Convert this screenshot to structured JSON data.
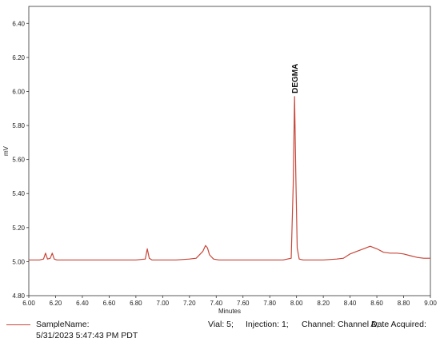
{
  "chart_data": {
    "type": "line",
    "xlabel": "Minutes",
    "ylabel": "mV",
    "xlim": [
      6.0,
      9.0
    ],
    "ylim": [
      4.8,
      6.5
    ],
    "x_ticks": [
      "6.00",
      "6.20",
      "6.40",
      "6.60",
      "6.80",
      "7.00",
      "7.20",
      "7.40",
      "7.60",
      "7.80",
      "8.00",
      "8.20",
      "8.40",
      "8.60",
      "8.80",
      "9.00"
    ],
    "y_ticks": [
      "4.80",
      "5.00",
      "5.20",
      "5.40",
      "5.60",
      "5.80",
      "6.00",
      "6.20",
      "6.40"
    ],
    "annotations": [
      {
        "text": "DEGMA",
        "x": 7.99,
        "y": 5.97
      }
    ],
    "series": [
      {
        "color": "#c8473a",
        "x": [
          6.0,
          6.08,
          6.11,
          6.125,
          6.14,
          6.16,
          6.175,
          6.19,
          6.21,
          6.3,
          6.4,
          6.5,
          6.6,
          6.7,
          6.8,
          6.87,
          6.885,
          6.9,
          6.92,
          6.95,
          7.0,
          7.1,
          7.2,
          7.25,
          7.3,
          7.32,
          7.335,
          7.35,
          7.38,
          7.42,
          7.5,
          7.6,
          7.7,
          7.8,
          7.9,
          7.96,
          7.975,
          7.985,
          7.995,
          8.005,
          8.02,
          8.05,
          8.1,
          8.2,
          8.3,
          8.35,
          8.4,
          8.45,
          8.5,
          8.55,
          8.6,
          8.65,
          8.7,
          8.75,
          8.8,
          8.85,
          8.9,
          8.95,
          9.0
        ],
        "y": [
          5.01,
          5.01,
          5.015,
          5.05,
          5.015,
          5.02,
          5.05,
          5.015,
          5.01,
          5.01,
          5.01,
          5.01,
          5.01,
          5.01,
          5.01,
          5.015,
          5.075,
          5.02,
          5.01,
          5.01,
          5.01,
          5.01,
          5.015,
          5.02,
          5.06,
          5.095,
          5.08,
          5.04,
          5.015,
          5.01,
          5.01,
          5.01,
          5.01,
          5.01,
          5.01,
          5.02,
          5.45,
          5.97,
          5.5,
          5.08,
          5.015,
          5.01,
          5.01,
          5.01,
          5.015,
          5.02,
          5.045,
          5.06,
          5.075,
          5.09,
          5.075,
          5.055,
          5.05,
          5.05,
          5.045,
          5.035,
          5.025,
          5.02,
          5.02
        ]
      }
    ]
  },
  "legend": {
    "sample_name": "SampleName:",
    "vial": "Vial: 5;",
    "injection": "Injection: 1;",
    "channel": "Channel: Channel A;",
    "date_acquired": "Date Acquired:",
    "date_value": "5/31/2023 5:47:43 PM PDT"
  }
}
